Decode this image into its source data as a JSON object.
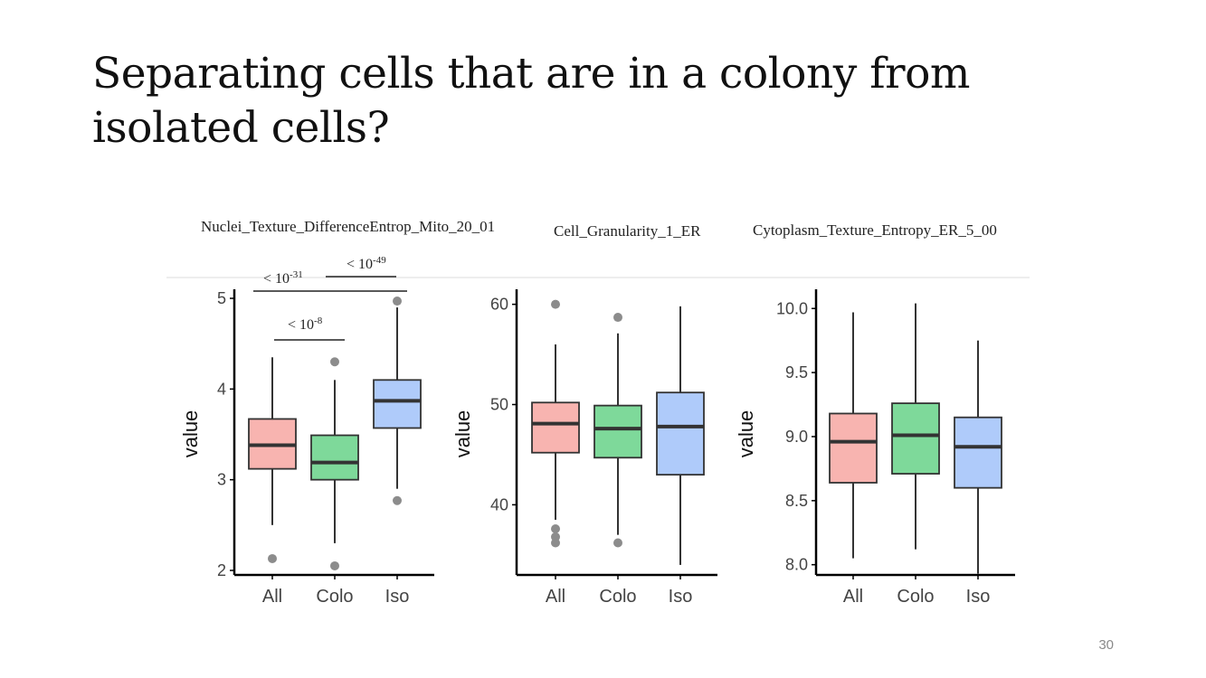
{
  "slide": {
    "title": "Separating cells that are in a colony from isolated cells?",
    "page_number": "30"
  },
  "colors": {
    "All": "#F8B4B0",
    "Colo": "#7ED99A",
    "Iso": "#AFCBFA",
    "box_stroke": "#333333",
    "outlier": "#8c8c8c",
    "axis": "#000000"
  },
  "chart_data": [
    {
      "type": "box",
      "title": "Nuclei_Texture_DifferenceEntrop_Mito_20_01",
      "ylabel": "value",
      "xlabel": "",
      "categories": [
        "All",
        "Colo",
        "Iso"
      ],
      "ylim": [
        1.95,
        5.1
      ],
      "yticks": [
        2,
        3,
        4,
        5
      ],
      "ytick_labels": [
        "2",
        "3",
        "4",
        "5"
      ],
      "boxes": [
        {
          "category": "All",
          "whisker_low": 2.5,
          "q1": 3.12,
          "median": 3.38,
          "q3": 3.67,
          "whisker_high": 4.35,
          "outliers": [
            2.13
          ]
        },
        {
          "category": "Colo",
          "whisker_low": 2.3,
          "q1": 3.0,
          "median": 3.19,
          "q3": 3.49,
          "whisker_high": 4.1,
          "outliers": [
            4.3,
            2.05
          ]
        },
        {
          "category": "Iso",
          "whisker_low": 2.9,
          "q1": 3.57,
          "median": 3.87,
          "q3": 4.1,
          "whisker_high": 4.9,
          "outliers": [
            4.97,
            2.77
          ]
        }
      ],
      "annotations": [
        {
          "base": "< 10",
          "exponent": "-31",
          "from": "All",
          "to": "Iso"
        },
        {
          "base": "< 10",
          "exponent": "-49",
          "from": "Colo",
          "to": "Iso"
        },
        {
          "base": "< 10",
          "exponent": "-8",
          "from": "All",
          "to": "Colo"
        }
      ]
    },
    {
      "type": "box",
      "title": "Cell_Granularity_1_ER",
      "ylabel": "value",
      "xlabel": "",
      "categories": [
        "All",
        "Colo",
        "Iso"
      ],
      "ylim": [
        33,
        61.5
      ],
      "yticks": [
        40,
        50,
        60
      ],
      "ytick_labels": [
        "40",
        "50",
        "60"
      ],
      "boxes": [
        {
          "category": "All",
          "whisker_low": 38.5,
          "q1": 45.2,
          "median": 48.1,
          "q3": 50.2,
          "whisker_high": 56,
          "outliers": [
            60,
            37.6,
            36.8,
            36.2
          ]
        },
        {
          "category": "Colo",
          "whisker_low": 37,
          "q1": 44.7,
          "median": 47.6,
          "q3": 49.9,
          "whisker_high": 57.1,
          "outliers": [
            58.7,
            36.2
          ]
        },
        {
          "category": "Iso",
          "whisker_low": 34,
          "q1": 43,
          "median": 47.8,
          "q3": 51.2,
          "whisker_high": 59.8,
          "outliers": []
        }
      ]
    },
    {
      "type": "box",
      "title": "Cytoplasm_Texture_Entropy_ER_5_00",
      "ylabel": "value",
      "xlabel": "",
      "categories": [
        "All",
        "Colo",
        "Iso"
      ],
      "ylim": [
        7.92,
        10.15
      ],
      "yticks": [
        8.0,
        8.5,
        9.0,
        9.5,
        10.0
      ],
      "ytick_labels": [
        "8.0",
        "8.5",
        "9.0",
        "9.5",
        "10.0"
      ],
      "boxes": [
        {
          "category": "All",
          "whisker_low": 8.05,
          "q1": 8.64,
          "median": 8.96,
          "q3": 9.18,
          "whisker_high": 9.97,
          "outliers": []
        },
        {
          "category": "Colo",
          "whisker_low": 8.12,
          "q1": 8.71,
          "median": 9.01,
          "q3": 9.26,
          "whisker_high": 10.04,
          "outliers": []
        },
        {
          "category": "Iso",
          "whisker_low": 7.93,
          "q1": 8.6,
          "median": 8.92,
          "q3": 9.15,
          "whisker_high": 9.75,
          "outliers": []
        }
      ]
    }
  ]
}
